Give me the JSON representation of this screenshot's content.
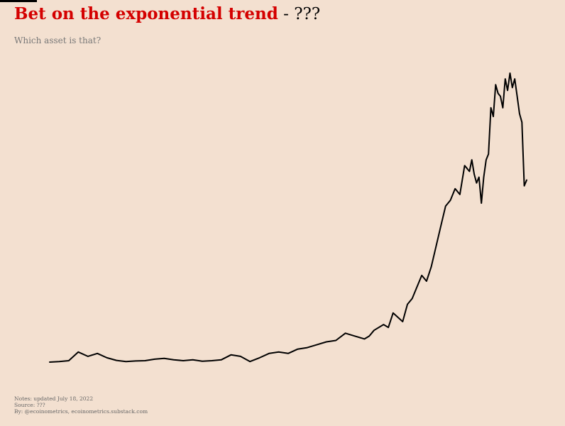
{
  "header": {
    "title_main": "Bet on the exponential trend",
    "title_sep": " - ",
    "title_suffix": "???",
    "subtitle": "Which asset is that?"
  },
  "notes": {
    "line1": "Notes: updated July 18, 2022",
    "line2": "Source: ???",
    "line3": "By: @ecoinometrics, ecoinometrics.substack.com"
  },
  "colors": {
    "background": "#f3e0d0",
    "title_accent": "#d40000",
    "line": "#000000"
  },
  "chart_data": {
    "type": "line",
    "title": "Bet on the exponential trend - ???",
    "subtitle": "Which asset is that?",
    "xlabel": "",
    "ylabel": "",
    "axes_visible": false,
    "grid": false,
    "legend": "none",
    "xlim": [
      0,
      100
    ],
    "ylim": [
      0,
      100
    ],
    "x": [
      0,
      2,
      4,
      6,
      8,
      10,
      12,
      14,
      16,
      18,
      20,
      22,
      24,
      26,
      28,
      30,
      32,
      34,
      36,
      38,
      40,
      42,
      44,
      46,
      48,
      50,
      52,
      54,
      56,
      58,
      60,
      62,
      64,
      66,
      67,
      68,
      70,
      71,
      72,
      74,
      75,
      76,
      77,
      78,
      79,
      80,
      81,
      82,
      83,
      84,
      85,
      86,
      87,
      88,
      88.5,
      89,
      89.5,
      90,
      90.5,
      91,
      91.5,
      92,
      92.5,
      93,
      93.5,
      94,
      94.5,
      95,
      95.5,
      96,
      96.5,
      97,
      97.5,
      98,
      98.5,
      99,
      99.5,
      100
    ],
    "series": [
      {
        "values": [
          0,
          0.2,
          0.5,
          3.5,
          2,
          3,
          1.5,
          0.6,
          0.2,
          0.4,
          0.5,
          1,
          1.3,
          0.8,
          0.5,
          0.8,
          0.3,
          0.5,
          0.8,
          2.5,
          2,
          0.2,
          1.5,
          3,
          3.5,
          3,
          4.5,
          5,
          6,
          7,
          7.5,
          10,
          9,
          8,
          9,
          11,
          13,
          12,
          17,
          14,
          20,
          22,
          26,
          30,
          28,
          33,
          40,
          47,
          54,
          56,
          60,
          58,
          68,
          66,
          70,
          65,
          62,
          64,
          55,
          64,
          70,
          72,
          88,
          85,
          96,
          93,
          92,
          88,
          98,
          94,
          100,
          95,
          98,
          92,
          86,
          83,
          61,
          63
        ]
      }
    ]
  }
}
